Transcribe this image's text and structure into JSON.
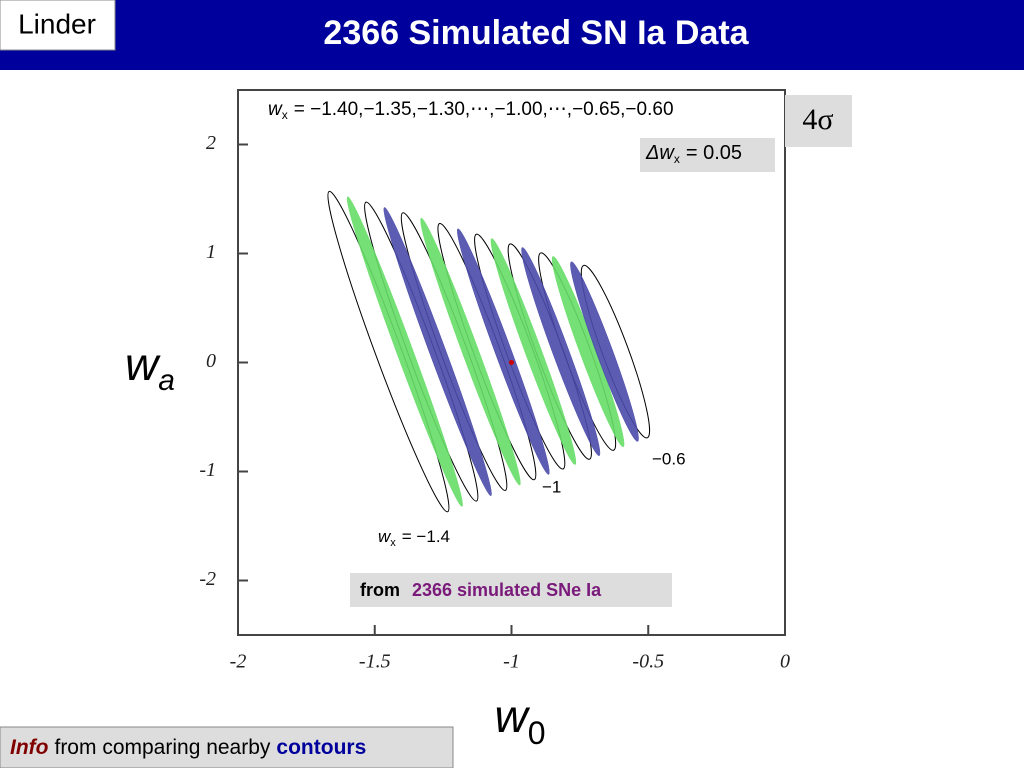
{
  "header": {
    "tag": "Linder",
    "title": "2366 Simulated SN Ia Data"
  },
  "chart_data": {
    "type": "contour",
    "x_label": "w",
    "x_label_sub": "0",
    "y_label": "w",
    "y_label_sub": "a",
    "xlim": [
      -2,
      0
    ],
    "ylim": [
      -2.5,
      2.5
    ],
    "xticks": [
      -2,
      -1.5,
      -1,
      -0.5,
      0
    ],
    "yticks": [
      -2,
      -1,
      0,
      1,
      2
    ],
    "series": [
      {
        "color": "#000000",
        "style": "outline",
        "w0": [
          -1.45,
          -1.33,
          -1.21,
          -1.09,
          -0.97,
          -0.86,
          -0.76,
          -0.62
        ],
        "wa": [
          0.1,
          0.1,
          0.1,
          0.1,
          0.1,
          0.1,
          0.1,
          0.1
        ]
      },
      {
        "color": "#66dd66",
        "style": "filled",
        "w0": [
          -1.39,
          -1.15,
          -0.92,
          -0.72
        ],
        "wa": [
          0.1,
          0.1,
          0.1,
          0.1
        ]
      },
      {
        "color": "#4a4aaa",
        "style": "filled",
        "w0": [
          -1.27,
          -1.03,
          -0.82,
          -0.66
        ],
        "wa": [
          0.1,
          0.1,
          0.1,
          0.1
        ]
      }
    ],
    "fiducial": {
      "color": "#cc0000",
      "w0": -1,
      "wa": 0
    },
    "annotations": {
      "wx_list": {
        "symbol": "w",
        "sub": "x",
        "text": "= −1.40,−1.35,−1.30,⋯,−1.00,⋯,−0.65,−0.60"
      },
      "sigma": "4σ",
      "step": {
        "symbol": "Δw",
        "sub": "x",
        "text": "= 0.05"
      },
      "contour_labels": [
        "−0.6",
        "−1"
      ],
      "first_label": {
        "symbol": "w",
        "sub": "x",
        "text": "= −1.4"
      },
      "source": {
        "prefix": "from",
        "text": "2366 simulated SNe Ia"
      }
    }
  },
  "footer": {
    "emph": "Info",
    "text": "from comparing nearby",
    "key": "contours"
  }
}
